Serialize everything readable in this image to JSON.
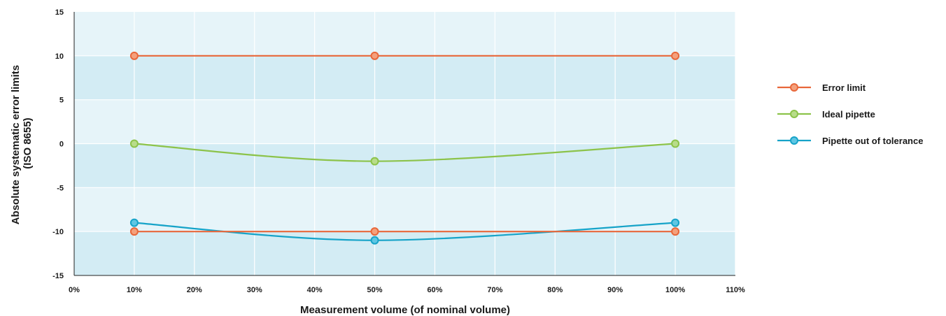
{
  "chart_data": {
    "type": "line",
    "title": "",
    "xlabel": "Measurement volume (of nominal volume)",
    "ylabel": "Absolute systematic error limits (ISO 8655)",
    "ylabel_lines": [
      "Absolute systematic error limits",
      "(ISO 8655)"
    ],
    "xlim": [
      0,
      110
    ],
    "ylim": [
      -15,
      15
    ],
    "x_ticks": [
      0,
      10,
      20,
      30,
      40,
      50,
      60,
      70,
      80,
      90,
      100,
      110
    ],
    "x_tick_labels": [
      "0%",
      "10%",
      "20%",
      "30%",
      "40%",
      "50%",
      "60%",
      "70%",
      "80%",
      "90%",
      "100%",
      "110%"
    ],
    "y_ticks": [
      15,
      10,
      5,
      0,
      -5,
      -10,
      -15
    ],
    "y_tick_labels": [
      "15",
      "10",
      "5",
      "0",
      "-5",
      "-10",
      "-15"
    ],
    "grid": true,
    "legend_position": "right",
    "series": [
      {
        "name": "Error limit",
        "color": "#e8673a",
        "marker_fill": "#f4a07c",
        "curve": "straight",
        "x": [
          10,
          50,
          100
        ],
        "y": [
          10,
          10,
          10
        ],
        "show_in_legend": true
      },
      {
        "name": "Ideal pipette",
        "color": "#8cc34a",
        "marker_fill": "#b8dc8a",
        "curve": "smooth",
        "x": [
          10,
          50,
          100
        ],
        "y": [
          0,
          -2,
          0
        ],
        "show_in_legend": true
      },
      {
        "name": "Pipette out of tolerance",
        "color": "#16a3c8",
        "marker_fill": "#5fc6e3",
        "curve": "smooth",
        "x": [
          10,
          50,
          100
        ],
        "y": [
          -9,
          -11,
          -9
        ],
        "show_in_legend": true
      },
      {
        "name": "Error limit",
        "color": "#e8673a",
        "marker_fill": "#f4a07c",
        "curve": "straight",
        "x": [
          10,
          50,
          100
        ],
        "y": [
          -10,
          -10,
          -10
        ],
        "show_in_legend": false
      }
    ],
    "colors": {
      "band_light": "#e6f4f9",
      "band_dark": "#d3ecf4",
      "grid": "#ffffff",
      "axis": "#222222"
    }
  }
}
